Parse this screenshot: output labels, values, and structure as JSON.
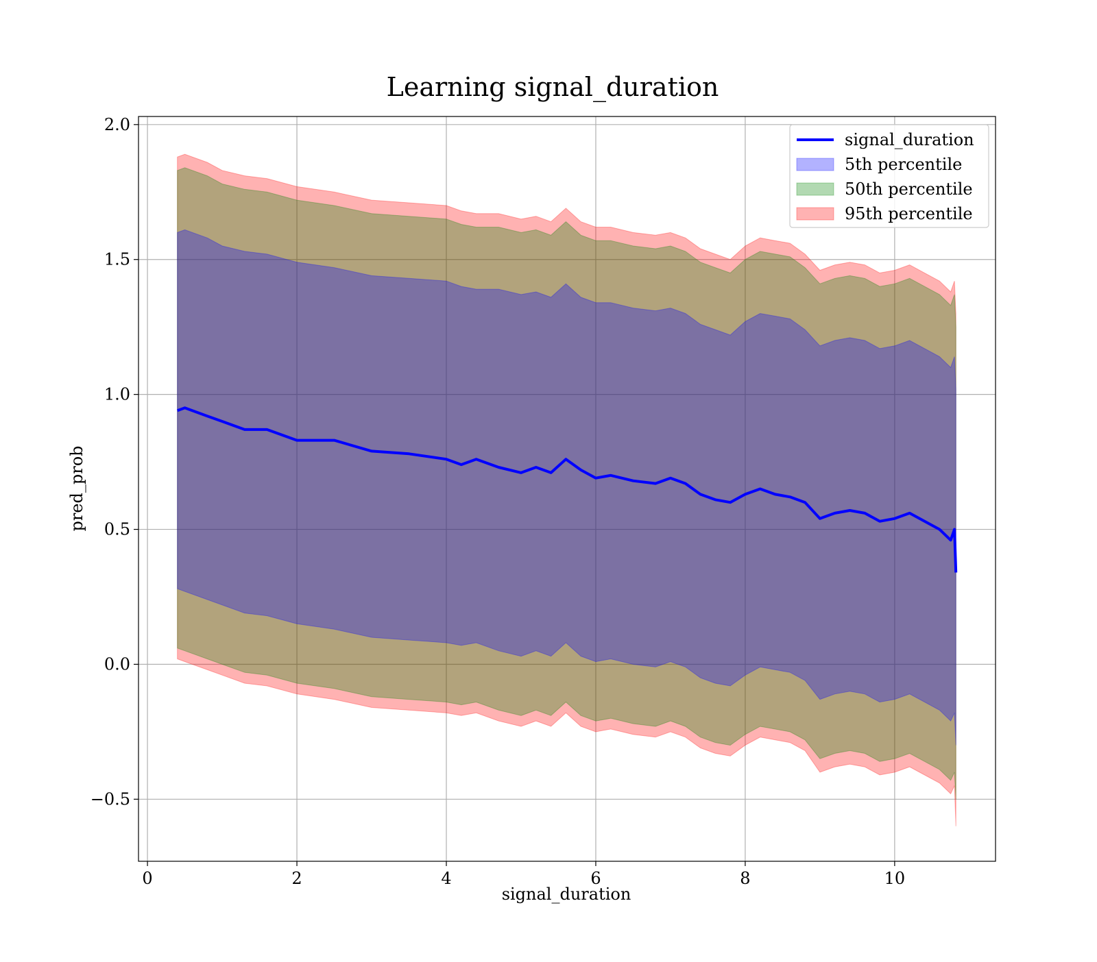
{
  "chart_data": {
    "type": "area",
    "title": "Learning signal_duration",
    "xlabel": "signal_duration",
    "ylabel": "pred_prob",
    "xlim": [
      -0.12,
      11.35
    ],
    "ylim": [
      -0.73,
      2.03
    ],
    "x_ticks": [
      0,
      2,
      4,
      6,
      8,
      10
    ],
    "x_tick_labels": [
      "0",
      "2",
      "4",
      "6",
      "8",
      "10"
    ],
    "y_ticks": [
      -0.5,
      0.0,
      0.5,
      1.0,
      1.5,
      2.0
    ],
    "y_tick_labels": [
      "−0.5",
      "0.0",
      "0.5",
      "1.0",
      "1.5",
      "2.0"
    ],
    "grid": true,
    "legend_position": "top-right",
    "colors": {
      "line": "#0000ff",
      "p5": "#0000ff",
      "p50": "#008000",
      "p95": "#ff0000"
    },
    "line": {
      "name": "signal_duration",
      "x": [
        0.4,
        0.5,
        0.8,
        1.0,
        1.3,
        1.6,
        2.0,
        2.5,
        3.0,
        3.5,
        4.0,
        4.2,
        4.4,
        4.7,
        5.0,
        5.2,
        5.4,
        5.6,
        5.8,
        6.0,
        6.2,
        6.5,
        6.8,
        7.0,
        7.2,
        7.4,
        7.6,
        7.8,
        8.0,
        8.2,
        8.4,
        8.6,
        8.8,
        9.0,
        9.2,
        9.4,
        9.6,
        9.8,
        10.0,
        10.2,
        10.4,
        10.6,
        10.75,
        10.8,
        10.82
      ],
      "y": [
        0.94,
        0.95,
        0.92,
        0.9,
        0.87,
        0.87,
        0.83,
        0.83,
        0.79,
        0.78,
        0.76,
        0.74,
        0.76,
        0.73,
        0.71,
        0.73,
        0.71,
        0.76,
        0.72,
        0.69,
        0.7,
        0.68,
        0.67,
        0.69,
        0.67,
        0.63,
        0.61,
        0.6,
        0.63,
        0.65,
        0.63,
        0.62,
        0.6,
        0.54,
        0.56,
        0.57,
        0.56,
        0.53,
        0.54,
        0.56,
        0.53,
        0.5,
        0.46,
        0.5,
        0.34
      ]
    },
    "bands": [
      {
        "name": "95th percentile",
        "x": [
          0.4,
          0.5,
          0.8,
          1.0,
          1.3,
          1.6,
          2.0,
          2.5,
          3.0,
          3.5,
          4.0,
          4.2,
          4.4,
          4.7,
          5.0,
          5.2,
          5.4,
          5.6,
          5.8,
          6.0,
          6.2,
          6.5,
          6.8,
          7.0,
          7.2,
          7.4,
          7.6,
          7.8,
          8.0,
          8.2,
          8.4,
          8.6,
          8.8,
          9.0,
          9.2,
          9.4,
          9.6,
          9.8,
          10.0,
          10.2,
          10.4,
          10.6,
          10.75,
          10.8,
          10.82
        ],
        "upper": [
          1.88,
          1.89,
          1.86,
          1.83,
          1.81,
          1.8,
          1.77,
          1.75,
          1.72,
          1.71,
          1.7,
          1.68,
          1.67,
          1.67,
          1.65,
          1.66,
          1.64,
          1.69,
          1.64,
          1.62,
          1.62,
          1.6,
          1.59,
          1.6,
          1.58,
          1.54,
          1.52,
          1.5,
          1.55,
          1.58,
          1.57,
          1.56,
          1.52,
          1.46,
          1.48,
          1.49,
          1.48,
          1.45,
          1.46,
          1.48,
          1.45,
          1.42,
          1.38,
          1.42,
          1.3
        ],
        "lower": [
          0.02,
          0.01,
          -0.02,
          -0.04,
          -0.07,
          -0.08,
          -0.11,
          -0.13,
          -0.16,
          -0.17,
          -0.18,
          -0.19,
          -0.18,
          -0.21,
          -0.23,
          -0.21,
          -0.23,
          -0.18,
          -0.23,
          -0.25,
          -0.24,
          -0.26,
          -0.27,
          -0.25,
          -0.27,
          -0.31,
          -0.33,
          -0.34,
          -0.3,
          -0.27,
          -0.28,
          -0.29,
          -0.32,
          -0.4,
          -0.38,
          -0.37,
          -0.38,
          -0.41,
          -0.4,
          -0.38,
          -0.41,
          -0.44,
          -0.48,
          -0.45,
          -0.6
        ]
      },
      {
        "name": "50th percentile",
        "x": [
          0.4,
          0.5,
          0.8,
          1.0,
          1.3,
          1.6,
          2.0,
          2.5,
          3.0,
          3.5,
          4.0,
          4.2,
          4.4,
          4.7,
          5.0,
          5.2,
          5.4,
          5.6,
          5.8,
          6.0,
          6.2,
          6.5,
          6.8,
          7.0,
          7.2,
          7.4,
          7.6,
          7.8,
          8.0,
          8.2,
          8.4,
          8.6,
          8.8,
          9.0,
          9.2,
          9.4,
          9.6,
          9.8,
          10.0,
          10.2,
          10.4,
          10.6,
          10.75,
          10.8,
          10.82
        ],
        "upper": [
          1.83,
          1.84,
          1.81,
          1.78,
          1.76,
          1.75,
          1.72,
          1.7,
          1.67,
          1.66,
          1.65,
          1.63,
          1.62,
          1.62,
          1.6,
          1.61,
          1.59,
          1.64,
          1.59,
          1.57,
          1.57,
          1.55,
          1.54,
          1.55,
          1.53,
          1.49,
          1.47,
          1.45,
          1.5,
          1.53,
          1.52,
          1.51,
          1.47,
          1.41,
          1.43,
          1.44,
          1.43,
          1.4,
          1.41,
          1.43,
          1.4,
          1.37,
          1.33,
          1.37,
          1.25
        ],
        "lower": [
          0.06,
          0.05,
          0.02,
          0.0,
          -0.03,
          -0.04,
          -0.07,
          -0.09,
          -0.12,
          -0.13,
          -0.14,
          -0.15,
          -0.14,
          -0.17,
          -0.19,
          -0.17,
          -0.19,
          -0.14,
          -0.19,
          -0.21,
          -0.2,
          -0.22,
          -0.23,
          -0.21,
          -0.23,
          -0.27,
          -0.29,
          -0.3,
          -0.26,
          -0.23,
          -0.24,
          -0.25,
          -0.28,
          -0.35,
          -0.33,
          -0.32,
          -0.33,
          -0.36,
          -0.35,
          -0.33,
          -0.36,
          -0.39,
          -0.43,
          -0.4,
          -0.5
        ]
      },
      {
        "name": "5th percentile",
        "x": [
          0.4,
          0.5,
          0.8,
          1.0,
          1.3,
          1.6,
          2.0,
          2.5,
          3.0,
          3.5,
          4.0,
          4.2,
          4.4,
          4.7,
          5.0,
          5.2,
          5.4,
          5.6,
          5.8,
          6.0,
          6.2,
          6.5,
          6.8,
          7.0,
          7.2,
          7.4,
          7.6,
          7.8,
          8.0,
          8.2,
          8.4,
          8.6,
          8.8,
          9.0,
          9.2,
          9.4,
          9.6,
          9.8,
          10.0,
          10.2,
          10.4,
          10.6,
          10.75,
          10.8,
          10.82
        ],
        "upper": [
          1.6,
          1.61,
          1.58,
          1.55,
          1.53,
          1.52,
          1.49,
          1.47,
          1.44,
          1.43,
          1.42,
          1.4,
          1.39,
          1.39,
          1.37,
          1.38,
          1.36,
          1.41,
          1.36,
          1.34,
          1.34,
          1.32,
          1.31,
          1.32,
          1.3,
          1.26,
          1.24,
          1.22,
          1.27,
          1.3,
          1.29,
          1.28,
          1.24,
          1.18,
          1.2,
          1.21,
          1.2,
          1.17,
          1.18,
          1.2,
          1.17,
          1.14,
          1.1,
          1.14,
          1.02
        ],
        "lower": [
          0.28,
          0.27,
          0.24,
          0.22,
          0.19,
          0.18,
          0.15,
          0.13,
          0.1,
          0.09,
          0.08,
          0.07,
          0.08,
          0.05,
          0.03,
          0.05,
          0.03,
          0.08,
          0.03,
          0.01,
          0.02,
          0.0,
          -0.01,
          0.01,
          -0.01,
          -0.05,
          -0.07,
          -0.08,
          -0.04,
          -0.01,
          -0.02,
          -0.03,
          -0.06,
          -0.13,
          -0.11,
          -0.1,
          -0.11,
          -0.14,
          -0.13,
          -0.11,
          -0.14,
          -0.17,
          -0.21,
          -0.18,
          -0.3
        ]
      }
    ],
    "legend": [
      {
        "label": "signal_duration",
        "kind": "line",
        "color": "#0000ff"
      },
      {
        "label": "5th percentile",
        "kind": "patch",
        "color": "#0000ff"
      },
      {
        "label": "50th percentile",
        "kind": "patch",
        "color": "#008000"
      },
      {
        "label": "95th percentile",
        "kind": "patch",
        "color": "#ff0000"
      }
    ]
  }
}
